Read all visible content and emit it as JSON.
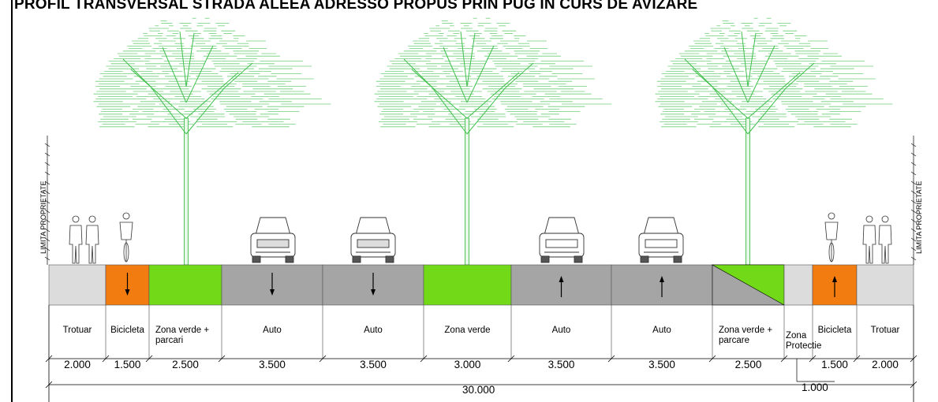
{
  "title": "PROFIL TRANSVERSAL STRADA ALEEA ADRESSO PROPUS PRIN PUG IN CURS DE AVIZARE",
  "property_limit_label": "LIMITA PROPRIETATE",
  "colors": {
    "sidewalk": "#dcdcdc",
    "bike": "#f27c10",
    "green": "#72d918",
    "road": "#a5a5a5",
    "tree": "#3fbf4c",
    "line": "#000000"
  },
  "segments": [
    {
      "label": "Trotuar",
      "width": "2.000",
      "type": "sidewalk"
    },
    {
      "label": "Bicicleta",
      "width": "1.500",
      "type": "bike",
      "arrow": "down"
    },
    {
      "label": "Zona verde + parcari",
      "width": "2.500",
      "type": "green"
    },
    {
      "label": "Auto",
      "width": "3.500",
      "type": "road",
      "arrow": "down"
    },
    {
      "label": "Auto",
      "width": "3.500",
      "type": "road",
      "arrow": "down"
    },
    {
      "label": "Zona verde",
      "width": "3.000",
      "type": "green"
    },
    {
      "label": "Auto",
      "width": "3.500",
      "type": "road",
      "arrow": "up"
    },
    {
      "label": "Auto",
      "width": "3.500",
      "type": "road",
      "arrow": "up"
    },
    {
      "label": "Zona verde + parcare",
      "width": "2.500",
      "type": "split"
    },
    {
      "label": "Zona Protectie",
      "width": "1.000",
      "type": "sidewalk"
    },
    {
      "label": "Bicicleta",
      "width": "1.500",
      "type": "bike",
      "arrow": "up"
    },
    {
      "label": "Trotuar",
      "width": "2.000",
      "type": "sidewalk"
    }
  ],
  "total_width": "30.000"
}
